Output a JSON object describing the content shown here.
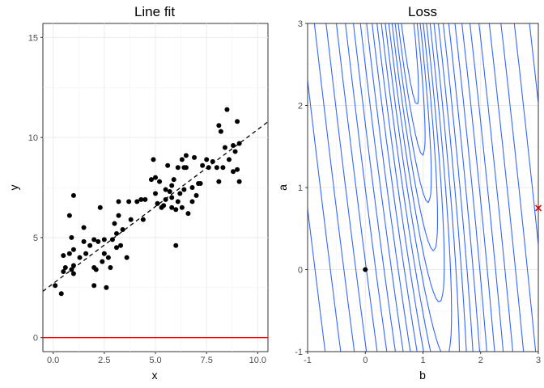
{
  "chart_data": [
    {
      "type": "scatter",
      "title": "Line fit",
      "xlabel": "x",
      "ylabel": "y",
      "xlim": [
        -0.5,
        10.5
      ],
      "ylim": [
        -0.7,
        15.7
      ],
      "xticks": [
        "0.0",
        "2.5",
        "5.0",
        "7.5",
        "10.0"
      ],
      "xtick_values": [
        0,
        2.5,
        5,
        7.5,
        10
      ],
      "yticks": [
        "0",
        "5",
        "10",
        "15"
      ],
      "ytick_values": [
        0,
        5,
        10,
        15
      ],
      "grid": true,
      "points_color": "#000000",
      "points": [
        [
          0.1,
          2.6
        ],
        [
          0.4,
          2.2
        ],
        [
          0.5,
          4.1
        ],
        [
          0.5,
          3.3
        ],
        [
          0.6,
          3.5
        ],
        [
          0.8,
          4.2
        ],
        [
          0.8,
          6.1
        ],
        [
          0.9,
          5.0
        ],
        [
          0.9,
          3.4
        ],
        [
          1.0,
          3.2
        ],
        [
          1.0,
          7.1
        ],
        [
          1.0,
          3.6
        ],
        [
          1.0,
          4.4
        ],
        [
          1.3,
          4.0
        ],
        [
          1.5,
          4.8
        ],
        [
          1.5,
          5.5
        ],
        [
          1.6,
          4.2
        ],
        [
          1.8,
          4.6
        ],
        [
          2.0,
          3.5
        ],
        [
          2.0,
          2.6
        ],
        [
          2.0,
          4.9
        ],
        [
          2.1,
          3.4
        ],
        [
          2.2,
          4.8
        ],
        [
          2.3,
          6.5
        ],
        [
          2.4,
          3.8
        ],
        [
          2.5,
          4.9
        ],
        [
          2.5,
          4.2
        ],
        [
          2.6,
          2.5
        ],
        [
          2.7,
          4.0
        ],
        [
          2.8,
          3.5
        ],
        [
          2.9,
          4.9
        ],
        [
          3.0,
          5.7
        ],
        [
          3.1,
          4.5
        ],
        [
          3.1,
          5.2
        ],
        [
          3.2,
          6.8
        ],
        [
          3.2,
          6.1
        ],
        [
          3.3,
          4.6
        ],
        [
          3.4,
          5.4
        ],
        [
          3.6,
          4.0
        ],
        [
          3.7,
          6.8
        ],
        [
          3.8,
          5.9
        ],
        [
          4.1,
          6.8
        ],
        [
          4.3,
          6.9
        ],
        [
          4.4,
          5.9
        ],
        [
          4.5,
          6.9
        ],
        [
          4.8,
          7.9
        ],
        [
          4.9,
          8.9
        ],
        [
          5.0,
          8.0
        ],
        [
          5.0,
          7.2
        ],
        [
          5.1,
          6.7
        ],
        [
          5.2,
          7.8
        ],
        [
          5.3,
          6.5
        ],
        [
          5.4,
          6.6
        ],
        [
          5.5,
          6.9
        ],
        [
          5.5,
          7.4
        ],
        [
          5.6,
          8.6
        ],
        [
          5.7,
          7.3
        ],
        [
          5.8,
          7.6
        ],
        [
          5.8,
          7.0
        ],
        [
          5.8,
          6.5
        ],
        [
          5.9,
          7.9
        ],
        [
          6.0,
          6.4
        ],
        [
          6.0,
          4.6
        ],
        [
          6.1,
          6.8
        ],
        [
          6.1,
          8.5
        ],
        [
          6.2,
          7.2
        ],
        [
          6.3,
          6.5
        ],
        [
          6.3,
          8.9
        ],
        [
          6.4,
          7.4
        ],
        [
          6.4,
          8.5
        ],
        [
          6.5,
          8.5
        ],
        [
          6.5,
          9.1
        ],
        [
          6.6,
          6.2
        ],
        [
          6.8,
          6.8
        ],
        [
          6.8,
          7.5
        ],
        [
          6.9,
          9.0
        ],
        [
          7.0,
          7.1
        ],
        [
          7.1,
          7.7
        ],
        [
          7.2,
          7.7
        ],
        [
          7.3,
          8.6
        ],
        [
          7.5,
          8.9
        ],
        [
          7.6,
          8.5
        ],
        [
          7.8,
          8.8
        ],
        [
          8.0,
          8.5
        ],
        [
          8.1,
          7.8
        ],
        [
          8.1,
          10.6
        ],
        [
          8.2,
          10.3
        ],
        [
          8.3,
          8.5
        ],
        [
          8.4,
          9.5
        ],
        [
          8.5,
          11.4
        ],
        [
          8.6,
          8.9
        ],
        [
          8.8,
          9.6
        ],
        [
          8.8,
          8.3
        ],
        [
          8.9,
          9.3
        ],
        [
          9.0,
          10.8
        ],
        [
          9.0,
          8.4
        ],
        [
          9.1,
          9.7
        ],
        [
          9.1,
          7.8
        ]
      ],
      "fit_line": {
        "intercept": 2.7,
        "slope": 0.77,
        "style": "dashed",
        "color": "#000000"
      },
      "hline": {
        "y": 0,
        "color": "#ff0000"
      }
    },
    {
      "type": "contour",
      "title": "Loss",
      "xlabel": "b",
      "ylabel": "a",
      "xlim": [
        -1,
        3
      ],
      "ylim": [
        -1,
        3
      ],
      "xticks": [
        "-1",
        "0",
        "1",
        "2",
        "3"
      ],
      "xtick_values": [
        -1,
        0,
        1,
        2,
        3
      ],
      "yticks": [
        "-1",
        "0",
        "1",
        "2",
        "3"
      ],
      "ytick_values": [
        -1,
        0,
        1,
        2,
        3
      ],
      "grid": true,
      "contour_color": "#3366ff",
      "loss_minimum": [
        0.77,
        2.7
      ],
      "start_point": {
        "b": 0,
        "a": 0,
        "marker": "dot",
        "color": "#000000"
      },
      "estimate": {
        "b": 3,
        "a": 0.75,
        "marker": "x",
        "color": "#ff0000"
      }
    }
  ]
}
